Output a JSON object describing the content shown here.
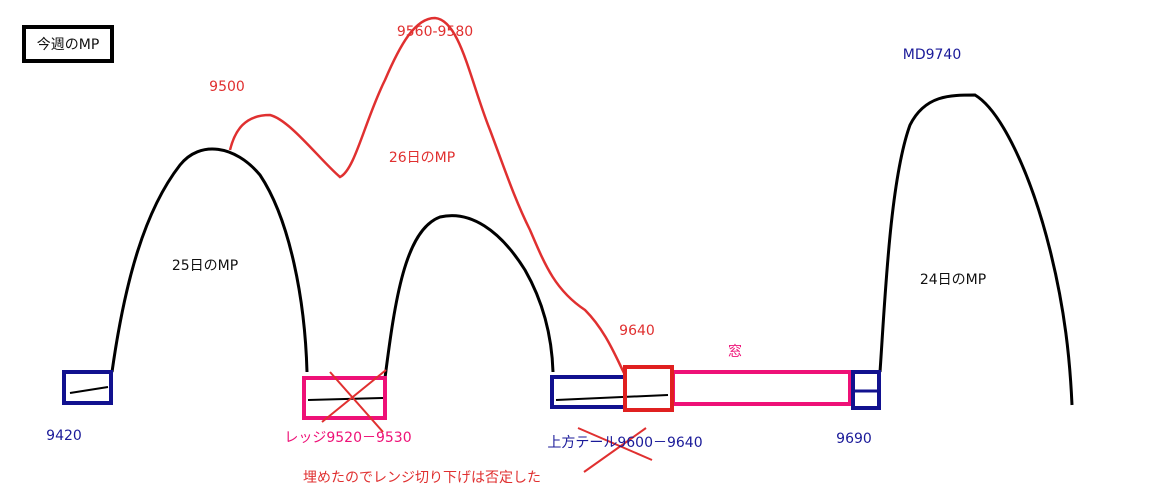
{
  "title": "今週のMP",
  "labels": [
    "9560-9580",
    "9500",
    "26日のMP",
    "25日のMP",
    "MD9740",
    "24日のMP",
    "9640",
    "窓",
    "9420",
    "レッジ9520－9530",
    "上方テール9600－9640",
    "9690",
    "埋めたのでレンジ切り下げは否定した"
  ]
}
